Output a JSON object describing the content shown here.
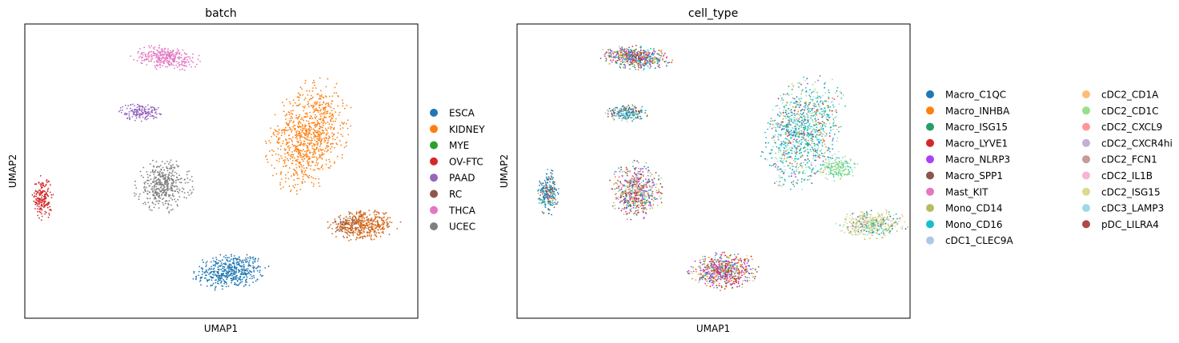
{
  "chart_data": [
    {
      "type": "scatter",
      "title": "batch",
      "xlabel": "UMAP1",
      "ylabel": "UMAP2",
      "grid": false,
      "ticks": false,
      "legend_placement": "right",
      "legend_columns": 1,
      "xlim": [
        0,
        10
      ],
      "ylim": [
        0,
        10
      ],
      "series": [
        {
          "name": "ESCA",
          "color": "#1f77b4",
          "clusters": [
            {
              "cx": 5.23,
              "cy": 1.58,
              "rx": 1.02,
              "ry": 0.68,
              "rot": 8,
              "n": 480
            }
          ]
        },
        {
          "name": "KIDNEY",
          "color": "#ff7f0e",
          "clusters": [
            {
              "cx": 7.22,
              "cy": 6.2,
              "rx": 1.05,
              "ry": 2.05,
              "rot": -12,
              "n": 900
            }
          ]
        },
        {
          "name": "MYE",
          "color": "#2ca02c",
          "clusters": []
        },
        {
          "name": "OV-FTC",
          "color": "#d62728",
          "clusters": [
            {
              "cx": 0.45,
              "cy": 4.08,
              "rx": 0.28,
              "ry": 0.82,
              "rot": 0,
              "n": 190
            }
          ]
        },
        {
          "name": "PAAD",
          "color": "#9467bd",
          "clusters": [
            {
              "cx": 2.93,
              "cy": 7.02,
              "rx": 0.58,
              "ry": 0.33,
              "rot": 0,
              "n": 160
            }
          ]
        },
        {
          "name": "RC",
          "color": "#8c564b",
          "clusters": [
            {
              "cx": 8.25,
              "cy": 3.16,
              "rx": 0.42,
              "ry": 0.5,
              "rot": 0,
              "n": 90
            }
          ]
        },
        {
          "name": "THCA",
          "color": "#e377c2",
          "clusters": [
            {
              "cx": 3.62,
              "cy": 8.85,
              "rx": 0.95,
              "ry": 0.43,
              "rot": -8,
              "n": 320
            }
          ]
        },
        {
          "name": "UCEC",
          "color": "#7f7f7f",
          "clusters": [
            {
              "cx": 3.52,
              "cy": 4.51,
              "rx": 0.78,
              "ry": 0.96,
              "rot": 0,
              "n": 420
            }
          ]
        }
      ],
      "overlays": [
        {
          "color": "#d2691e",
          "cx": 8.62,
          "cy": 3.16,
          "rx": 0.95,
          "ry": 0.55,
          "rot": 4,
          "n": 420
        }
      ]
    },
    {
      "type": "scatter",
      "title": "cell_type",
      "xlabel": "UMAP1",
      "ylabel": "UMAP2",
      "grid": false,
      "ticks": false,
      "legend_placement": "right",
      "legend_columns": 2,
      "xlim": [
        0,
        10
      ],
      "ylim": [
        0,
        10
      ],
      "categories": [
        {
          "name": "Macro_C1QC",
          "color": "#1f77b4"
        },
        {
          "name": "Macro_INHBA",
          "color": "#ff7f0e"
        },
        {
          "name": "Macro_ISG15",
          "color": "#279e68"
        },
        {
          "name": "Macro_LYVE1",
          "color": "#d62728"
        },
        {
          "name": "Macro_NLRP3",
          "color": "#aa40fc"
        },
        {
          "name": "Macro_SPP1",
          "color": "#8c564b"
        },
        {
          "name": "Mast_KIT",
          "color": "#e377c2"
        },
        {
          "name": "Mono_CD14",
          "color": "#b5bd61"
        },
        {
          "name": "Mono_CD16",
          "color": "#17becf"
        },
        {
          "name": "cDC1_CLEC9A",
          "color": "#aec7e8"
        },
        {
          "name": "cDC2_CD1A",
          "color": "#ffbb78"
        },
        {
          "name": "cDC2_CD1C",
          "color": "#98df8a"
        },
        {
          "name": "cDC2_CXCL9",
          "color": "#ff9896"
        },
        {
          "name": "cDC2_CXCR4hi",
          "color": "#c5b0d5"
        },
        {
          "name": "cDC2_FCN1",
          "color": "#c49c94"
        },
        {
          "name": "cDC2_IL1B",
          "color": "#f7b6d2"
        },
        {
          "name": "cDC2_ISG15",
          "color": "#dbdb8d"
        },
        {
          "name": "cDC3_LAMP3",
          "color": "#9edae5"
        },
        {
          "name": "pDC_LILRA4",
          "color": "#ad494a"
        }
      ],
      "clusters": [
        {
          "cx": 3.02,
          "cy": 8.86,
          "rx": 0.95,
          "ry": 0.42,
          "rot": -6,
          "n": 560,
          "mix": [
            [
              "Macro_C1QC",
              3
            ],
            [
              "Macro_INHBA",
              2
            ],
            [
              "Macro_ISG15",
              1
            ],
            [
              "Macro_LYVE1",
              2
            ],
            [
              "Macro_NLRP3",
              2
            ],
            [
              "Macro_SPP1",
              2
            ],
            [
              "Mono_CD14",
              1
            ],
            [
              "Mono_CD16",
              2
            ],
            [
              "cDC2_CD1C",
              1
            ],
            [
              "cDC2_FCN1",
              1
            ]
          ]
        },
        {
          "cx": 2.8,
          "cy": 6.96,
          "rx": 0.58,
          "ry": 0.32,
          "rot": 0,
          "n": 220,
          "mix": [
            [
              "Macro_C1QC",
              4
            ],
            [
              "Mono_CD16",
              2
            ],
            [
              "cDC2_CD1C",
              2
            ],
            [
              "Macro_LYVE1",
              1
            ],
            [
              "Macro_SPP1",
              1
            ],
            [
              "Mono_CD14",
              1
            ],
            [
              "cDC1_CLEC9A",
              1
            ]
          ]
        },
        {
          "cx": 0.8,
          "cy": 4.25,
          "rx": 0.3,
          "ry": 0.82,
          "rot": 0,
          "n": 230,
          "mix": [
            [
              "Macro_C1QC",
              5
            ],
            [
              "Mono_CD16",
              2
            ],
            [
              "Macro_SPP1",
              2
            ],
            [
              "Macro_LYVE1",
              1
            ],
            [
              "Mono_CD14",
              1
            ]
          ]
        },
        {
          "cx": 3.02,
          "cy": 4.32,
          "rx": 0.72,
          "ry": 1.05,
          "rot": 0,
          "n": 600,
          "mix": [
            [
              "Macro_C1QC",
              2
            ],
            [
              "Macro_INHBA",
              1
            ],
            [
              "Macro_LYVE1",
              2
            ],
            [
              "Macro_NLRP3",
              2
            ],
            [
              "Macro_SPP1",
              3
            ],
            [
              "Mast_KIT",
              2
            ],
            [
              "Mono_CD14",
              3
            ],
            [
              "Mono_CD16",
              1
            ],
            [
              "cDC2_CD1C",
              2
            ],
            [
              "cDC2_FCN1",
              1
            ]
          ]
        },
        {
          "cx": 7.3,
          "cy": 6.3,
          "rx": 1.05,
          "ry": 2.05,
          "rot": -12,
          "n": 1100,
          "mix": [
            [
              "Mono_CD16",
              6
            ],
            [
              "cDC3_LAMP3",
              4
            ],
            [
              "Macro_C1QC",
              2
            ],
            [
              "cDC2_CD1C",
              3
            ],
            [
              "Macro_ISG15",
              1
            ],
            [
              "Macro_INHBA",
              1
            ],
            [
              "Mono_CD14",
              1
            ],
            [
              "Macro_LYVE1",
              1
            ],
            [
              "Macro_NLRP3",
              1
            ]
          ]
        },
        {
          "cx": 8.15,
          "cy": 5.1,
          "rx": 0.55,
          "ry": 0.45,
          "rot": 0,
          "n": 180,
          "mix": [
            [
              "cDC2_CD1C",
              5
            ],
            [
              "Mono_CD16",
              1
            ]
          ]
        },
        {
          "cx": 9.05,
          "cy": 3.2,
          "rx": 0.95,
          "ry": 0.52,
          "rot": 4,
          "n": 450,
          "mix": [
            [
              "cDC2_ISG15",
              4
            ],
            [
              "Mono_CD14",
              2
            ],
            [
              "cDC2_CD1C",
              1
            ],
            [
              "Macro_C1QC",
              1
            ],
            [
              "cDC2_IL1B",
              1
            ],
            [
              "Mono_CD16",
              1
            ]
          ]
        },
        {
          "cx": 5.28,
          "cy": 1.6,
          "rx": 0.98,
          "ry": 0.66,
          "rot": 8,
          "n": 650,
          "mix": [
            [
              "Macro_LYVE1",
              3
            ],
            [
              "Macro_NLRP3",
              3
            ],
            [
              "Macro_INHBA",
              2
            ],
            [
              "Macro_SPP1",
              2
            ],
            [
              "Mono_CD14",
              2
            ],
            [
              "Macro_C1QC",
              1
            ],
            [
              "Mast_KIT",
              1
            ],
            [
              "Mono_CD16",
              1
            ],
            [
              "cDC2_CD1C",
              1
            ]
          ]
        }
      ]
    }
  ]
}
